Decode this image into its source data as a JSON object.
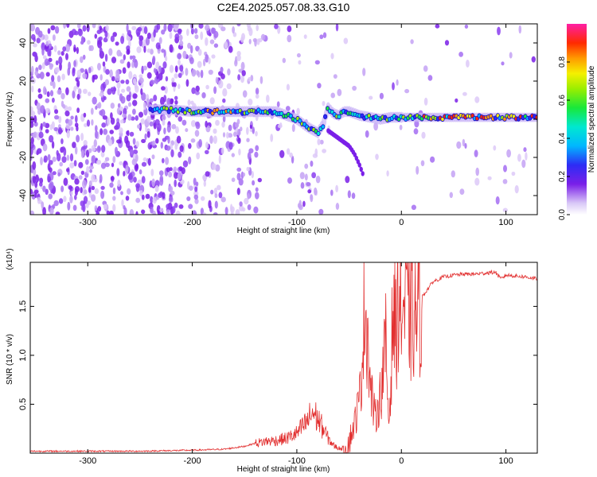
{
  "title": "C2E4.2025.057.08.33.G10",
  "colors": {
    "snr_line": "#e23030",
    "frame": "#000000",
    "signal_purple": "#7a1fe8"
  },
  "chart_data": [
    {
      "type": "heatmap",
      "xlabel": "Height of straight line (km)",
      "ylabel": "Frequency (Hz)",
      "xlim": [
        -355,
        130
      ],
      "ylim": [
        -50,
        50
      ],
      "xticks": [
        -300,
        -200,
        -100,
        0,
        100
      ],
      "xtick_labels": [
        "-300",
        "-200",
        "-100",
        "0",
        "100"
      ],
      "yticks": [
        -40,
        -20,
        0,
        20,
        40
      ],
      "ytick_labels": [
        "-40",
        "-20",
        "0",
        "20",
        "40"
      ],
      "colorbar": {
        "label": "Normalized spectral amplitude",
        "range": [
          0,
          1
        ],
        "ticks": [
          0.0,
          0.2,
          0.4,
          0.6,
          0.8
        ],
        "tick_labels": [
          "0.0",
          "0.2",
          "0.4",
          "0.6",
          "0.8"
        ],
        "colormap": "rainbow (white-purple-blue-cyan-green-yellow-red-magenta)"
      },
      "ridge": {
        "description": "signal trace frequency vs height",
        "x": [
          -240,
          -220,
          -200,
          -180,
          -160,
          -140,
          -120,
          -110,
          -100,
          -90,
          -80,
          -75,
          -70,
          -65,
          -60,
          -55,
          -50,
          -45,
          -40,
          -30,
          -20,
          -10,
          0,
          20,
          50,
          80,
          100,
          130
        ],
        "y": [
          5,
          5,
          4,
          4,
          4,
          4,
          4,
          2,
          0,
          -4,
          -7,
          -3,
          6,
          3,
          2,
          4,
          4,
          3,
          2,
          1,
          0,
          1,
          1,
          1,
          1,
          1,
          1,
          1
        ]
      },
      "branch": {
        "description": "descending branch near -45 km",
        "x": [
          -70,
          -60,
          -50,
          -45,
          -40,
          -38,
          -36
        ],
        "y": [
          -6,
          -10,
          -14,
          -18,
          -24,
          -27,
          -30
        ]
      }
    },
    {
      "type": "line",
      "xlabel": "Height of straight line (km)",
      "ylabel": "SNR (10 * v/v)",
      "y_scale_note": "(x10⁴)",
      "xlim": [
        -355,
        130
      ],
      "ylim": [
        0,
        1.95
      ],
      "xticks": [
        -300,
        -200,
        -100,
        0,
        100
      ],
      "xtick_labels": [
        "-300",
        "-200",
        "-100",
        "0",
        "100"
      ],
      "yticks": [
        0.5,
        1.0,
        1.5
      ],
      "ytick_labels": [
        "0.5",
        "1.0",
        "1.5"
      ],
      "series": [
        {
          "x": [
            -355,
            -300,
            -250,
            -200,
            -170,
            -150,
            -140,
            -130,
            -120,
            -110,
            -100,
            -95,
            -90,
            -85,
            -80,
            -75,
            -70,
            -65,
            -60,
            -55,
            -50,
            -45,
            -40,
            -38,
            -35,
            -32,
            -30,
            -25,
            -20,
            -15,
            -12,
            -10,
            -8,
            -5,
            -3,
            0,
            5,
            10,
            15,
            20,
            30,
            40,
            50,
            60,
            70,
            80,
            90,
            95,
            100,
            110,
            120,
            130
          ],
          "y": [
            0.02,
            0.02,
            0.02,
            0.03,
            0.04,
            0.07,
            0.1,
            0.12,
            0.13,
            0.15,
            0.2,
            0.26,
            0.32,
            0.42,
            0.35,
            0.25,
            0.15,
            0.08,
            0.05,
            0.05,
            0.12,
            0.3,
            0.55,
            0.9,
            1.55,
            1.2,
            0.7,
            0.35,
            0.6,
            1.1,
            0.3,
            0.8,
            1.5,
            1.2,
            1.6,
            1.5,
            1.45,
            1.35,
            1.4,
            1.6,
            1.75,
            1.8,
            1.82,
            1.83,
            1.83,
            1.84,
            1.85,
            1.78,
            1.82,
            1.81,
            1.8,
            1.78
          ]
        }
      ]
    }
  ]
}
